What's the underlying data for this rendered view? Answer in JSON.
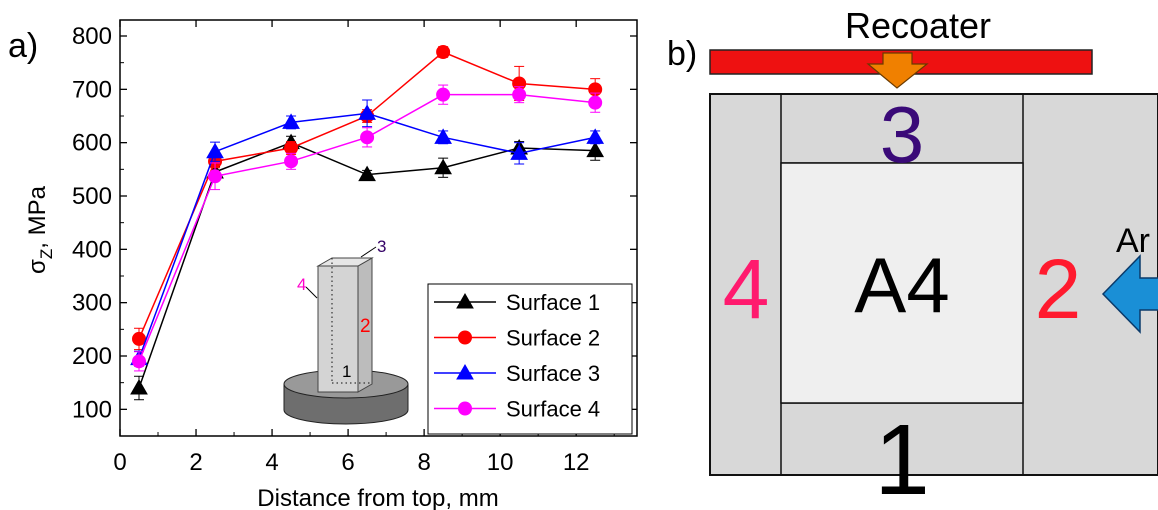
{
  "panel_a": {
    "label": "a)",
    "chart_data": {
      "type": "line",
      "x": [
        0.5,
        2.5,
        4.5,
        6.5,
        8.5,
        10.5,
        12.5
      ],
      "xlabel": "Distance from top, mm",
      "ylabel_sigma": "σ",
      "ylabel_sub": "Z",
      "ylabel_rest": ", MPa",
      "xlim": [
        0,
        13.6
      ],
      "ylim": [
        50,
        830
      ],
      "xticks": [
        0,
        2,
        4,
        6,
        8,
        10,
        12
      ],
      "yticks": [
        100,
        200,
        300,
        400,
        500,
        600,
        700,
        800
      ],
      "legend_position": "bottom-right",
      "series": [
        {
          "name": "Surface 1",
          "color": "#000000",
          "marker": "triangle",
          "values": [
            140,
            545,
            600,
            540,
            553,
            590,
            585
          ],
          "errors": [
            22,
            10,
            12,
            8,
            18,
            12,
            18
          ]
        },
        {
          "name": "Surface 2",
          "color": "#ff0000",
          "marker": "circle",
          "values": [
            232,
            565,
            590,
            650,
            770,
            711,
            700
          ],
          "errors": [
            20,
            12,
            12,
            12,
            10,
            32,
            20
          ]
        },
        {
          "name": "Surface 3",
          "color": "#0000ff",
          "marker": "triangle",
          "values": [
            195,
            583,
            638,
            655,
            610,
            580,
            610
          ],
          "errors": [
            14,
            18,
            12,
            25,
            12,
            20,
            12
          ]
        },
        {
          "name": "Surface 4",
          "color": "#ff00ff",
          "marker": "circle",
          "values": [
            190,
            537,
            565,
            610,
            690,
            690,
            675
          ],
          "errors": [
            18,
            25,
            15,
            18,
            18,
            15,
            18
          ]
        }
      ]
    },
    "inset": {
      "label_1": "1",
      "label_2": "2",
      "label_3": "3",
      "label_4": "4",
      "color_1": "#000000",
      "color_2": "#ff0000",
      "color_3": "#330066",
      "color_4": "#ff00cc"
    }
  },
  "panel_b": {
    "label": "b)",
    "recoater_label": "Recoater",
    "argon_label": "Ar",
    "center_label": "A4",
    "surface_labels": {
      "top": "3",
      "right": "2",
      "bottom": "1",
      "left": "4"
    },
    "colors": {
      "recoater_bar": "#ee1111",
      "recoater_arrow": "#f08000",
      "argon_arrow": "#1a8fd6",
      "surface_1": "#000000",
      "surface_2": "#ff1a2e",
      "surface_3": "#3a0a78",
      "surface_4": "#ff1a6e"
    }
  }
}
